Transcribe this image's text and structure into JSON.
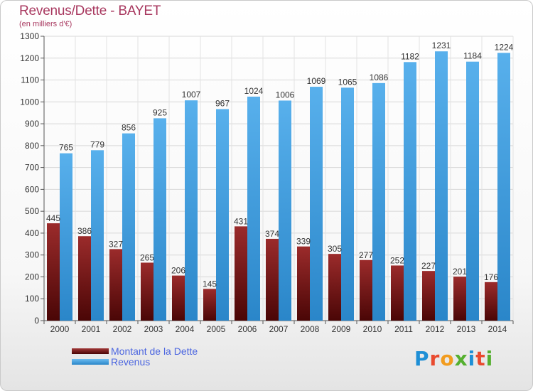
{
  "header": {
    "title": "Revenus/Dette - BAYET",
    "subtitle": "(en milliers d'€)"
  },
  "colors": {
    "debt": "#7a1010",
    "revenue": "#3d9ee0",
    "title": "#a8385f",
    "legend_text": "#4c66e0"
  },
  "legend": [
    {
      "label": "Montant de la Dette",
      "color": "#7a1010"
    },
    {
      "label": "Revenus",
      "color": "#3d9ee0"
    }
  ],
  "brand": {
    "text": "Proxiti"
  },
  "chart_data": {
    "type": "bar",
    "title": "Revenus/Dette - BAYET",
    "subtitle": "(en milliers d'€)",
    "categories": [
      "2000",
      "2001",
      "2002",
      "2003",
      "2004",
      "2005",
      "2006",
      "2007",
      "2008",
      "2009",
      "2010",
      "2011",
      "2012",
      "2013",
      "2014"
    ],
    "series": [
      {
        "name": "Montant de la Dette",
        "values": [
          445,
          386,
          327,
          265,
          206,
          145,
          431,
          374,
          339,
          305,
          277,
          252,
          227,
          201,
          176
        ]
      },
      {
        "name": "Revenus",
        "values": [
          765,
          779,
          856,
          925,
          1007,
          967,
          1024,
          1006,
          1069,
          1065,
          1086,
          1182,
          1231,
          1184,
          1224
        ]
      }
    ],
    "ylim": [
      0,
      1300
    ],
    "yticks": [
      0,
      100,
      200,
      300,
      400,
      500,
      600,
      700,
      800,
      900,
      1000,
      1100,
      1200,
      1300
    ],
    "grid": true,
    "legend_position": "bottom-left"
  }
}
